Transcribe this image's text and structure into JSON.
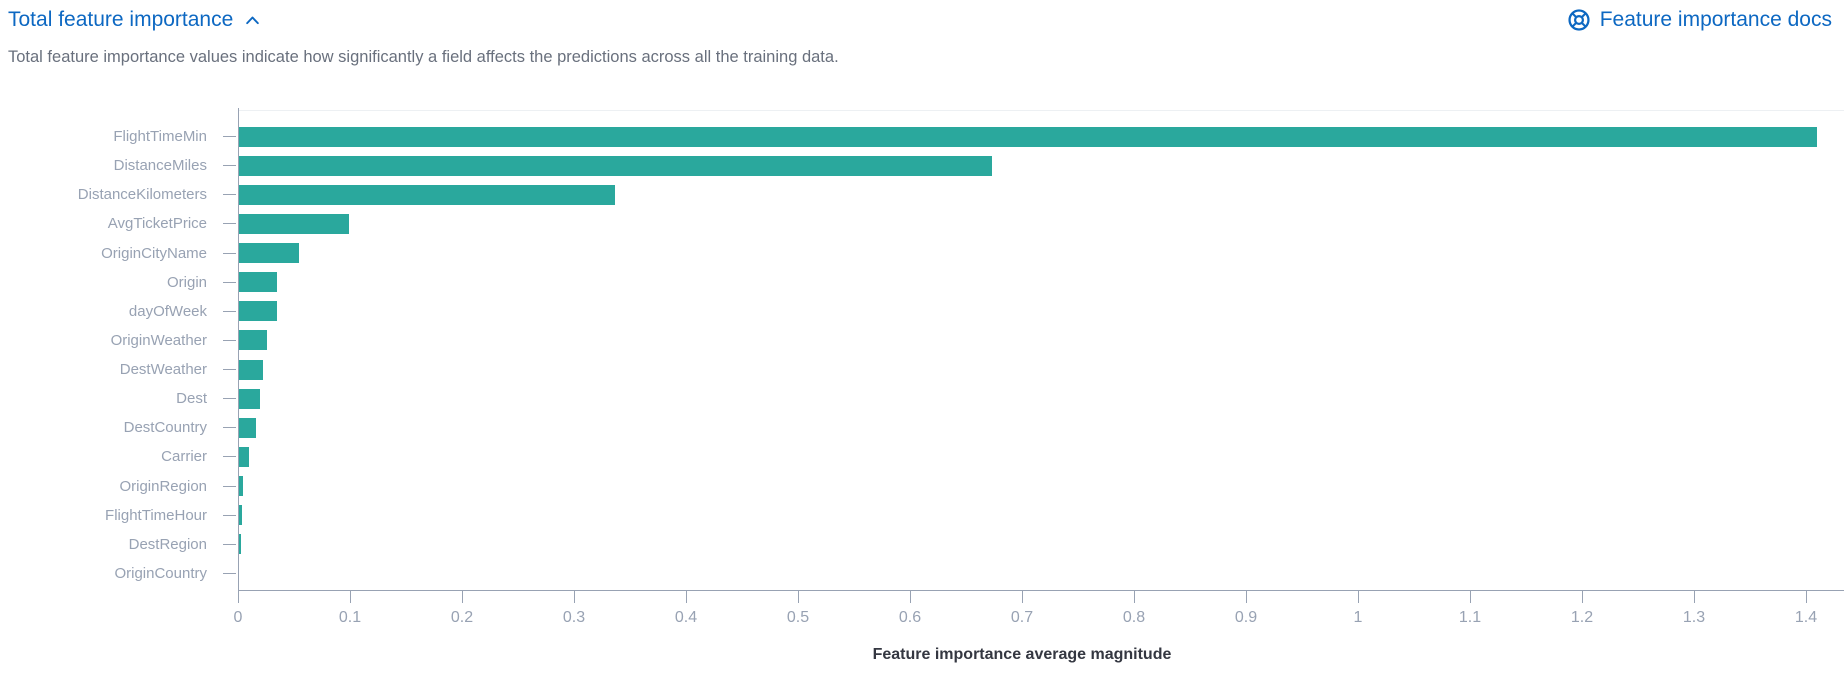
{
  "header": {
    "title": "Total feature importance",
    "docs_link_label": "Feature importance docs"
  },
  "description": "Total feature importance values indicate how significantly a field affects the predictions across all the training data.",
  "colors": {
    "link_blue": "#0d68c2",
    "bar_teal": "#2AA89D",
    "axis_gray": "#98A2B3",
    "subdued_text": "#69707D",
    "axis_title_text": "#343741"
  },
  "chart_data": {
    "type": "bar",
    "orientation": "horizontal",
    "title": "Total feature importance",
    "xlabel": "Feature importance average magnitude",
    "ylabel": "",
    "xlim": [
      0,
      1.4
    ],
    "grid": false,
    "legend": false,
    "bar_color": "#2AA89D",
    "categories": [
      "FlightTimeMin",
      "DistanceMiles",
      "DistanceKilometers",
      "AvgTicketPrice",
      "OriginCityName",
      "Origin",
      "dayOfWeek",
      "OriginWeather",
      "DestWeather",
      "Dest",
      "DestCountry",
      "Carrier",
      "OriginRegion",
      "FlightTimeHour",
      "DestRegion",
      "OriginCountry"
    ],
    "values": [
      1.41,
      0.673,
      0.337,
      0.099,
      0.054,
      0.035,
      0.035,
      0.026,
      0.022,
      0.02,
      0.016,
      0.01,
      0.0045,
      0.0035,
      0.0027,
      0.0005
    ],
    "xticks": [
      "0",
      "0.1",
      "0.2",
      "0.3",
      "0.4",
      "0.5",
      "0.6",
      "0.7",
      "0.8",
      "0.9",
      "1",
      "1.1",
      "1.2",
      "1.3",
      "1.4"
    ]
  }
}
